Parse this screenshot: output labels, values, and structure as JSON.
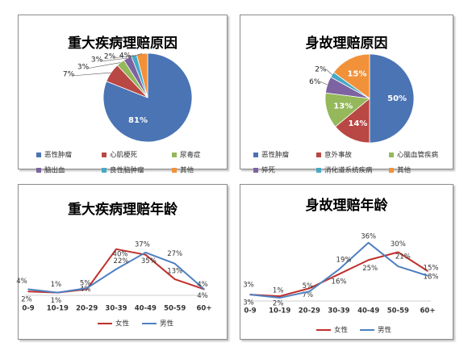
{
  "chart_data": [
    {
      "type": "pie",
      "title": "重大疾病理赔原因",
      "labels": [
        "恶性肿瘤",
        "心肌梗死",
        "尿毒症",
        "脑出血",
        "良性脑肿瘤",
        "其他"
      ],
      "values": [
        81,
        7,
        3,
        3,
        2,
        4
      ],
      "value_labels": [
        "81%",
        "7%",
        "3%",
        "3%",
        "2%",
        "4%"
      ],
      "colors": [
        "#4a74b4",
        "#b94744",
        "#94b85a",
        "#7d63a1",
        "#46aac5",
        "#f1913a"
      ],
      "legend": "bottom"
    },
    {
      "type": "pie",
      "title": "身故理赔原因",
      "labels": [
        "恶性肿瘤",
        "意外事故",
        "心脑血管疾病",
        "猝死",
        "消化道系统疾病",
        "其他"
      ],
      "values": [
        50,
        14,
        13,
        6,
        2,
        15
      ],
      "value_labels": [
        "50%",
        "14%",
        "13%",
        "6%",
        "2%",
        "15%"
      ],
      "colors": [
        "#4a74b4",
        "#b94744",
        "#94b85a",
        "#7d63a1",
        "#46aac5",
        "#f1913a"
      ],
      "legend": "bottom"
    },
    {
      "type": "line",
      "title": "重大疾病理赔年龄",
      "categories": [
        "0-9",
        "10-19",
        "20-29",
        "30-39",
        "40-49",
        "50-59",
        "60+"
      ],
      "series": [
        {
          "name": "女性",
          "color": "#c0302d",
          "values": [
            2,
            1,
            4,
            40,
            35,
            13,
            4
          ],
          "labels": [
            "2%",
            "1%",
            "4%",
            "40%",
            "35%",
            "13%",
            "4%"
          ]
        },
        {
          "name": "男性",
          "color": "#4f80c0",
          "values": [
            4,
            1,
            5,
            22,
            37,
            27,
            4
          ],
          "labels": [
            "4%",
            "1%",
            "5%",
            "22%",
            "37%",
            "27%",
            "4%"
          ]
        }
      ],
      "ylim": [
        0,
        50
      ],
      "grid": false,
      "legend": "bottom"
    },
    {
      "type": "line",
      "title": "身故理赔年龄",
      "categories": [
        "0-9",
        "10-19",
        "20-29",
        "30-39",
        "40-49",
        "50-59",
        "60+"
      ],
      "series": [
        {
          "name": "女性",
          "color": "#c0302d",
          "values": [
            3,
            2,
            7,
            16,
            25,
            30,
            18
          ],
          "labels": [
            "3%",
            "2%",
            "7%",
            "16%",
            "25%",
            "30%",
            "18%"
          ]
        },
        {
          "name": "男性",
          "color": "#4f80c0",
          "values": [
            3,
            1,
            5,
            19,
            36,
            21,
            15
          ],
          "labels": [
            "3%",
            "1%",
            "5%",
            "19%",
            "36%",
            "21%",
            "15%"
          ]
        }
      ],
      "ylim": [
        0,
        40
      ],
      "grid": false,
      "legend": "bottom"
    }
  ]
}
